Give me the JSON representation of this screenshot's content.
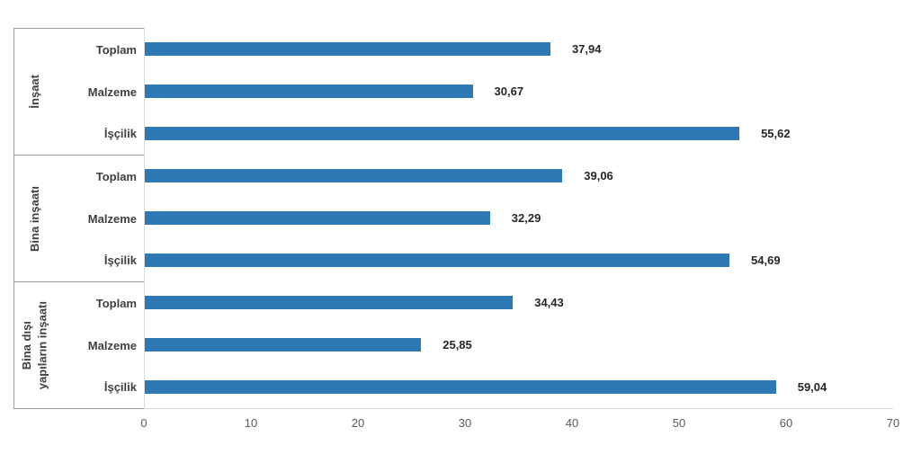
{
  "chart_data": {
    "type": "bar",
    "orientation": "horizontal",
    "title": "",
    "xlabel": "",
    "ylabel": "",
    "xlim": [
      0,
      70
    ],
    "xticks": [
      "0",
      "10",
      "20",
      "30",
      "40",
      "50",
      "60",
      "70"
    ],
    "grid": false,
    "legend": false,
    "bar_color": "#2E79B5",
    "decimal_separator": ",",
    "groups": [
      {
        "group_label": "İnşaat",
        "group_label_lines": [
          "İnşaat"
        ],
        "rows": [
          {
            "category": "Toplam",
            "value": 37.94,
            "value_label": "37,94"
          },
          {
            "category": "Malzeme",
            "value": 30.67,
            "value_label": "30,67"
          },
          {
            "category": "İşçilik",
            "value": 55.62,
            "value_label": "55,62"
          }
        ]
      },
      {
        "group_label": "Bina inşaatı",
        "group_label_lines": [
          "Bina inşaatı"
        ],
        "rows": [
          {
            "category": "Toplam",
            "value": 39.06,
            "value_label": "39,06"
          },
          {
            "category": "Malzeme",
            "value": 32.29,
            "value_label": "32,29"
          },
          {
            "category": "İşçilik",
            "value": 54.69,
            "value_label": "54,69"
          }
        ]
      },
      {
        "group_label": "Bina dışı yapıların inşaatı",
        "group_label_lines": [
          "Bina dışı",
          "yapıların inşaatı"
        ],
        "rows": [
          {
            "category": "Toplam",
            "value": 34.43,
            "value_label": "34,43"
          },
          {
            "category": "Malzeme",
            "value": 25.85,
            "value_label": "25,85"
          },
          {
            "category": "İşçilik",
            "value": 59.04,
            "value_label": "59,04"
          }
        ]
      }
    ]
  }
}
